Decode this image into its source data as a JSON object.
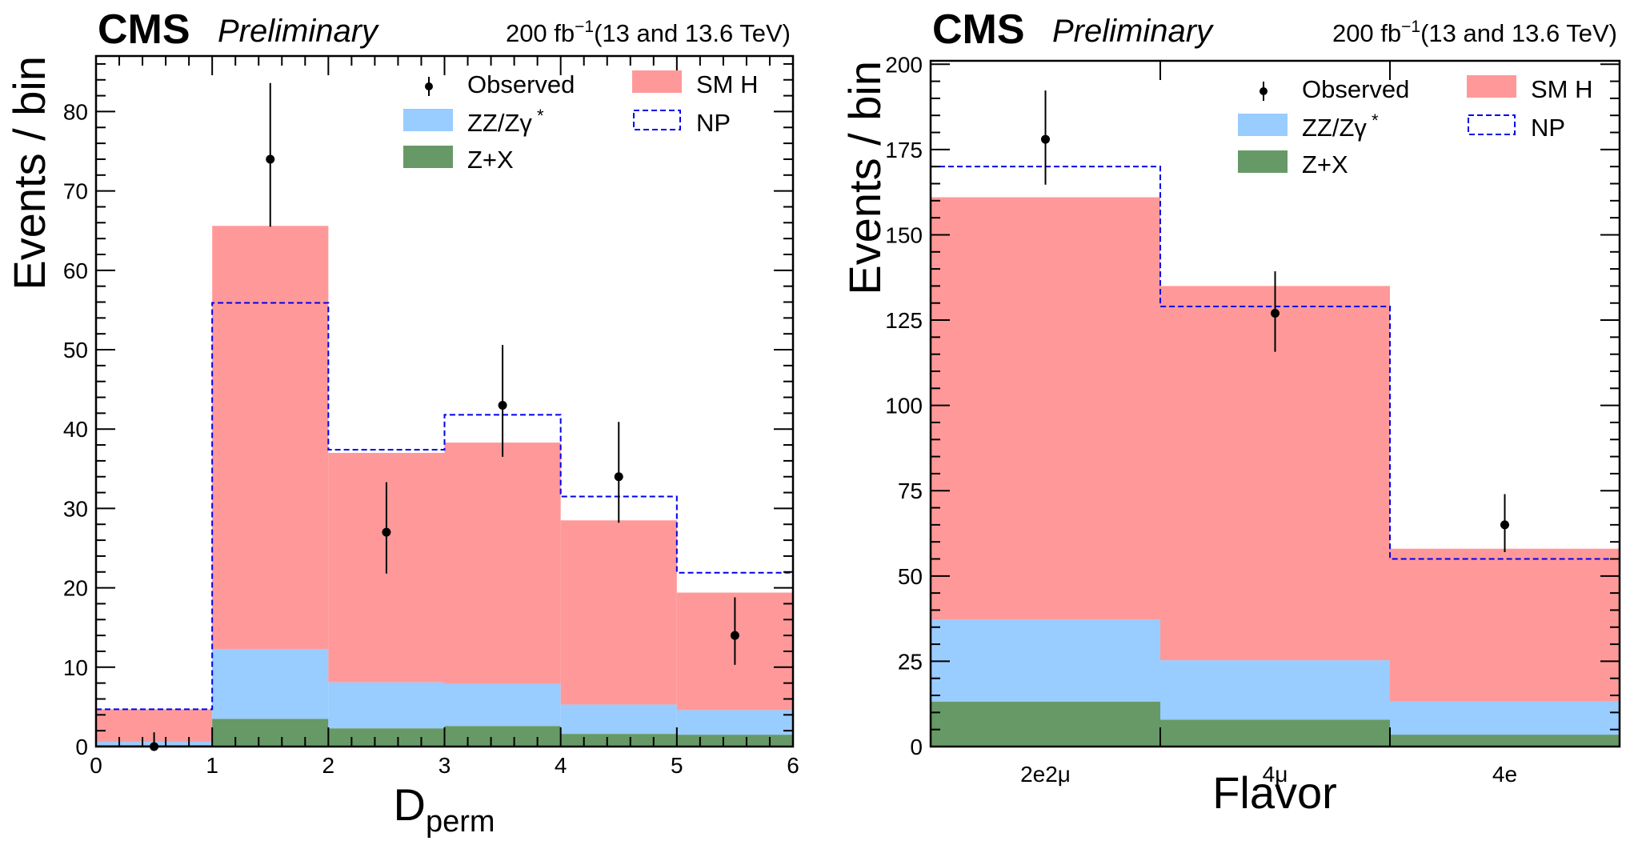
{
  "chart_data": [
    {
      "type": "bar",
      "stacked": true,
      "header": {
        "experiment": "CMS",
        "status": "Preliminary",
        "lumi": "200 fb",
        "lumi_exp": "−1",
        "energy": "(13 and 13.6 TeV)"
      },
      "xlabel": "D",
      "xlabel_sub": "perm",
      "ylabel": "Events / bin",
      "xlim": [
        0,
        6
      ],
      "ylim": [
        0,
        87
      ],
      "x_ticks": [
        "0",
        "1",
        "2",
        "3",
        "4",
        "5",
        "6"
      ],
      "y_ticks": [
        "0",
        "10",
        "20",
        "30",
        "40",
        "50",
        "60",
        "70",
        "80"
      ],
      "y_tick_values": [
        0,
        10,
        20,
        30,
        40,
        50,
        60,
        70,
        80
      ],
      "bin_edges": [
        0,
        1,
        2,
        3,
        4,
        5,
        6
      ],
      "series": [
        {
          "name": "Z+X",
          "color": "#669966",
          "values": [
            0.2,
            3.5,
            2.3,
            2.6,
            1.6,
            1.5
          ]
        },
        {
          "name": "ZZ/Zγ",
          "name_sup": "*",
          "color": "#99ccff",
          "values": [
            0.6,
            12.3,
            8.1,
            7.9,
            5.3,
            4.6
          ]
        },
        {
          "name": "SM H",
          "color": "#ff9999",
          "values": [
            4.7,
            65.6,
            37.0,
            38.3,
            28.5,
            19.4
          ]
        }
      ],
      "np": {
        "name": "NP",
        "color": "#0000ee",
        "values": [
          4.7,
          55.9,
          37.4,
          41.8,
          31.5,
          21.9
        ]
      },
      "observed": {
        "name": "Observed",
        "values": [
          0,
          74,
          27,
          43,
          34,
          14
        ],
        "err_low": [
          0,
          8.5,
          5.2,
          6.5,
          5.8,
          3.7
        ],
        "err_high": [
          1.8,
          9.6,
          6.3,
          7.6,
          6.9,
          4.8
        ]
      },
      "legend": {
        "placement": "top-right",
        "columns": [
          [
            "Observed",
            "ZZ/Zγ",
            "Z+X"
          ],
          [
            "SM H",
            "NP"
          ]
        ]
      },
      "grid": false
    },
    {
      "type": "bar",
      "stacked": true,
      "header": {
        "experiment": "CMS",
        "status": "Preliminary",
        "lumi": "200 fb",
        "lumi_exp": "−1",
        "energy": "(13 and 13.6 TeV)"
      },
      "xlabel": "Flavor",
      "xlabel_sub": "",
      "ylabel": "Events / bin",
      "xlim": [
        0,
        3
      ],
      "ylim": [
        0,
        201
      ],
      "categories": [
        "2e2μ",
        "4μ",
        "4e"
      ],
      "y_ticks": [
        "0",
        "25",
        "50",
        "75",
        "100",
        "125",
        "150",
        "175",
        "200"
      ],
      "y_tick_values": [
        0,
        25,
        50,
        75,
        100,
        125,
        150,
        175,
        200
      ],
      "bin_edges": [
        0,
        1,
        2,
        3
      ],
      "series": [
        {
          "name": "Z+X",
          "color": "#669966",
          "values": [
            13.2,
            7.9,
            3.5
          ]
        },
        {
          "name": "ZZ/Zγ",
          "name_sup": "*",
          "color": "#99ccff",
          "values": [
            37.2,
            25.3,
            13.2
          ]
        },
        {
          "name": "SM H",
          "color": "#ff9999",
          "values": [
            161,
            135,
            58
          ]
        }
      ],
      "np": {
        "name": "NP",
        "color": "#0000ee",
        "values": [
          170,
          129,
          55
        ]
      },
      "observed": {
        "name": "Observed",
        "values": [
          178,
          127,
          65
        ],
        "err_low": [
          13.3,
          11.3,
          8.0
        ],
        "err_high": [
          14.3,
          12.3,
          9.0
        ]
      },
      "legend": {
        "placement": "top-right",
        "columns": [
          [
            "Observed",
            "ZZ/Zγ",
            "Z+X"
          ],
          [
            "SM H",
            "NP"
          ]
        ]
      },
      "grid": false
    }
  ]
}
